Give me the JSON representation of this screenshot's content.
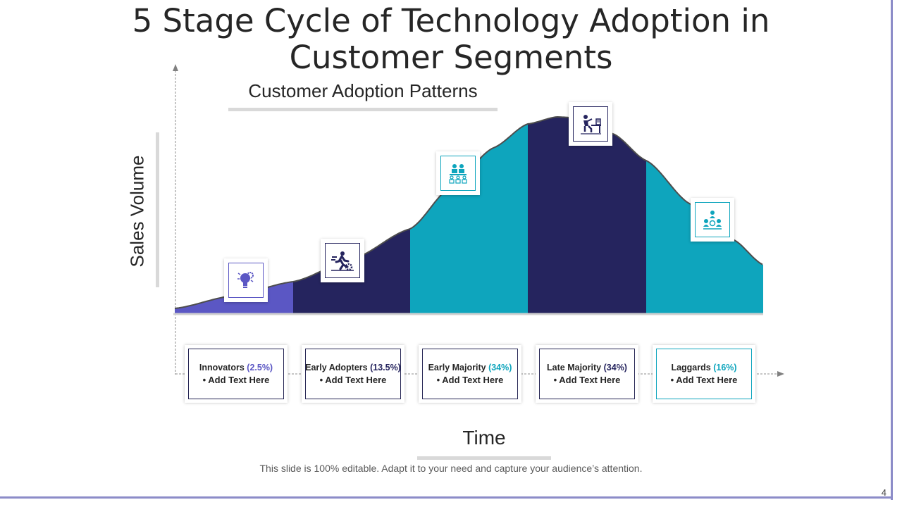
{
  "title": "5 Stage Cycle of Technology Adoption in Customer Segments",
  "subtitle": "Customer Adoption Patterns",
  "y_axis_label": "Sales Volume",
  "x_axis_label": "Time",
  "footnote": "This slide is 100% editable. Adapt it to your need and capture your audience’s attention.",
  "page_number": "4",
  "colors": {
    "innovators": "#5b57c4",
    "navy": "#25245e",
    "teal": "#0ea5bd",
    "text": "#262626"
  },
  "chart_data": {
    "type": "area",
    "title": "Customer Adoption Patterns",
    "xlabel": "Time",
    "ylabel": "Sales Volume",
    "categories": [
      "Innovators",
      "Early Adopters",
      "Early Majority",
      "Late Majority",
      "Laggards"
    ],
    "values": [
      2.5,
      13.5,
      34,
      34,
      16
    ],
    "unit": "%"
  },
  "stages": [
    {
      "name": "Innovators",
      "pct": "(2.5%)",
      "bullet": "•  Add Text Here",
      "icon": "lightbulb-gear-icon",
      "color": "#5b57c4"
    },
    {
      "name": "Early Adopters",
      "pct": "(13.5%)",
      "bullet": "•  Add Text Here",
      "icon": "runner-gear-icon",
      "color": "#25245e"
    },
    {
      "name": "Early Majority",
      "pct": "(34%)",
      "bullet": "•  Add Text Here",
      "icon": "group-meeting-icon",
      "color": "#0ea5bd"
    },
    {
      "name": "Late Majority",
      "pct": "(34%)",
      "bullet": "•  Add Text Here",
      "icon": "person-at-desk-icon",
      "color": "#25245e"
    },
    {
      "name": "Laggards",
      "pct": "(16%)",
      "bullet": "•  Add Text Here",
      "icon": "people-network-icon",
      "color": "#0ea5bd"
    }
  ]
}
